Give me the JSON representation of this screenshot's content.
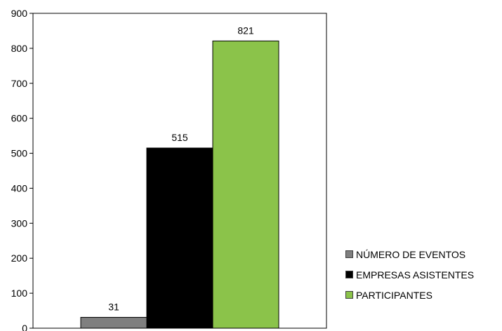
{
  "chart_data": {
    "type": "bar",
    "categories": [
      "NÚMERO DE EVENTOS",
      "EMPRESAS ASISTENTES",
      "PARTICIPANTES"
    ],
    "values": [
      31,
      515,
      821
    ],
    "data_labels": [
      "31",
      "515",
      "821"
    ],
    "colors": [
      "#7f7f7f",
      "#000000",
      "#8bc34a"
    ],
    "ylim": [
      0,
      900
    ],
    "yticks": [
      0,
      100,
      200,
      300,
      400,
      500,
      600,
      700,
      800,
      900
    ],
    "title": "",
    "xlabel": "",
    "ylabel": "",
    "grid": false,
    "legend_position": "right"
  }
}
